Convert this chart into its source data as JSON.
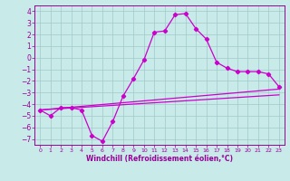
{
  "xlabel": "Windchill (Refroidissement éolien,°C)",
  "background_color": "#c8eae8",
  "line_color": "#cc00cc",
  "grid_color": "#a0c8c8",
  "spine_color": "#990099",
  "xlim": [
    -0.5,
    23.5
  ],
  "ylim": [
    -7.5,
    4.5
  ],
  "xticks": [
    0,
    1,
    2,
    3,
    4,
    5,
    6,
    7,
    8,
    9,
    10,
    11,
    12,
    13,
    14,
    15,
    16,
    17,
    18,
    19,
    20,
    21,
    22,
    23
  ],
  "yticks": [
    -7,
    -6,
    -5,
    -4,
    -3,
    -2,
    -1,
    0,
    1,
    2,
    3,
    4
  ],
  "line1_x": [
    0,
    1,
    2,
    3,
    4,
    5,
    6,
    7,
    8,
    9,
    10,
    11,
    12,
    13,
    14,
    15,
    16,
    17,
    18,
    19,
    20,
    21,
    22,
    23
  ],
  "line1_y": [
    -4.5,
    -5.0,
    -4.3,
    -4.3,
    -4.5,
    -6.7,
    -7.2,
    -5.5,
    -3.3,
    -1.8,
    -0.2,
    2.2,
    2.3,
    3.7,
    3.8,
    2.5,
    1.6,
    -0.4,
    -0.9,
    -1.2,
    -1.2,
    -1.2,
    -1.4,
    -2.5
  ],
  "line2_x": [
    0,
    23
  ],
  "line2_y": [
    -4.5,
    -3.2
  ],
  "line3_x": [
    0,
    23
  ],
  "line3_y": [
    -4.5,
    -2.7
  ],
  "marker": "D",
  "markersize": 2.2,
  "linewidth": 0.9,
  "tick_color": "#990099",
  "label_fontsize": 5.0,
  "xlabel_fontsize": 5.5,
  "ytick_fontsize": 5.5,
  "xtick_fontsize": 4.5
}
